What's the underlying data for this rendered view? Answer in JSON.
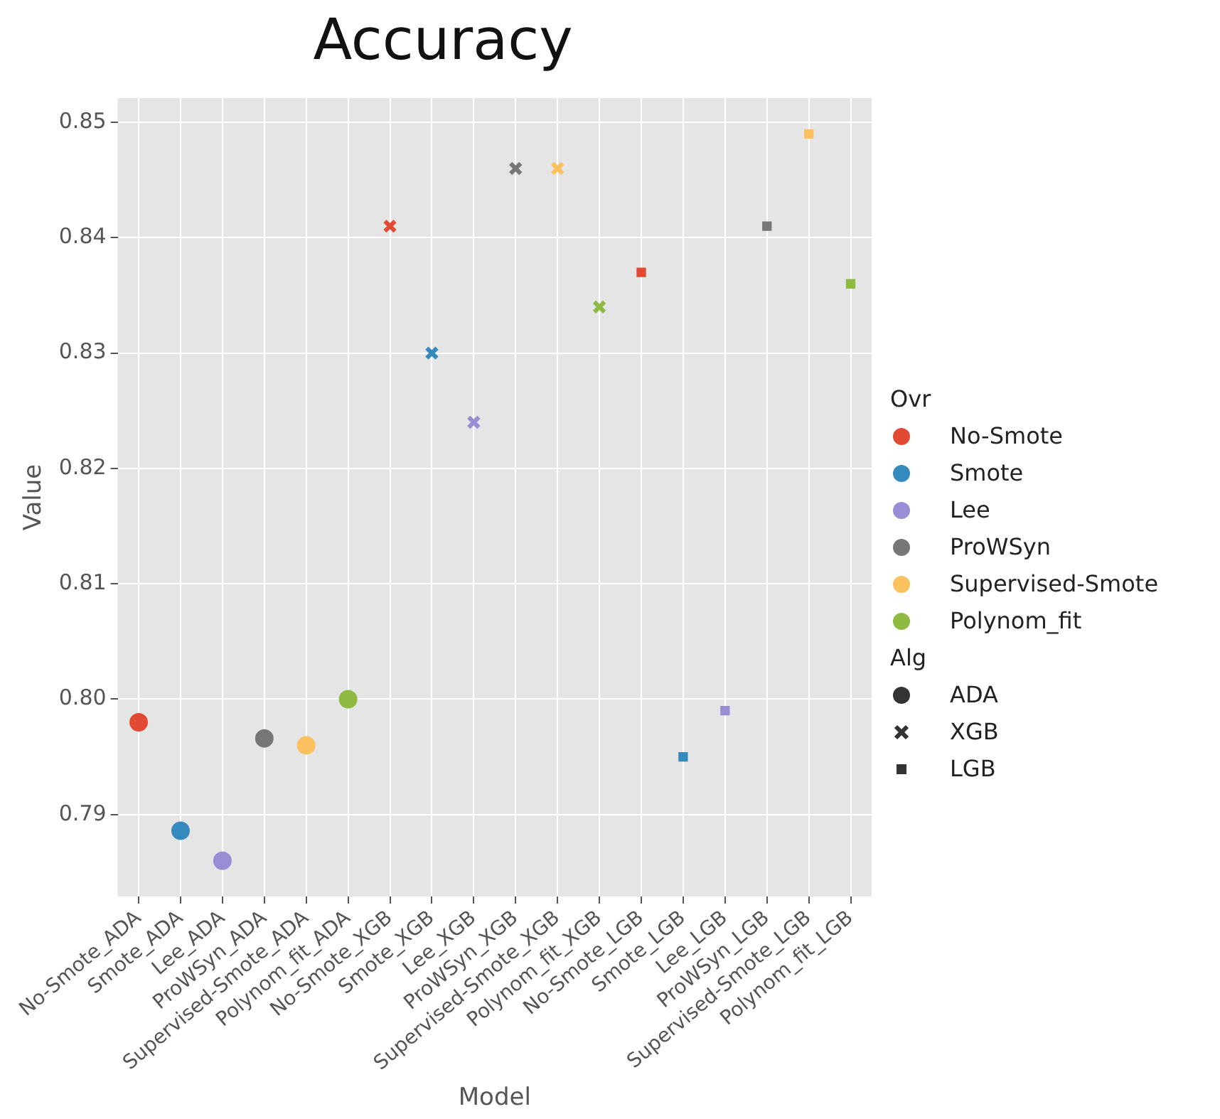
{
  "chart_data": {
    "type": "scatter",
    "title": "Accuracy",
    "xlabel": "Model",
    "ylabel": "Value",
    "legend_title": [
      "Ovr",
      "Alg"
    ],
    "legend": "right",
    "categories": [
      "No-Smote_ADA",
      "Smote_ADA",
      "Lee_ADA",
      "ProWSyn_ADA",
      "Supervised-Smote_ADA",
      "Polynom_fit_ADA",
      "No-Smote_XGB",
      "Smote_XGB",
      "Lee_XGB",
      "ProWSyn_XGB",
      "Supervised-Smote_XGB",
      "Polynom_fit_XGB",
      "No-Smote_LGB",
      "Smote_LGB",
      "Lee_LGB",
      "ProWSyn_LGB",
      "Supervised-Smote_LGB",
      "Polynom_fit_LGB"
    ],
    "ylim": [
      0.7829,
      0.8521
    ],
    "yticks": [
      0.79,
      {
        "value": 0.8,
        "label": "0.80"
      },
      0.81,
      0.82,
      0.83,
      0.84,
      0.85
    ],
    "grid": true,
    "series": [
      {
        "name": "No-Smote",
        "color": "#e24a33",
        "x": [
          "No-Smote_ADA",
          "No-Smote_XGB",
          "No-Smote_LGB"
        ],
        "values": [
          0.798,
          0.841,
          0.837
        ]
      },
      {
        "name": "Smote",
        "color": "#348abd",
        "x": [
          "Smote_ADA",
          "Smote_XGB",
          "Smote_LGB"
        ],
        "values": [
          0.7886,
          0.83,
          0.795
        ]
      },
      {
        "name": "Lee",
        "color": "#988ed5",
        "x": [
          "Lee_ADA",
          "Lee_XGB",
          "Lee_LGB"
        ],
        "values": [
          0.786,
          0.824,
          0.799
        ]
      },
      {
        "name": "ProWSyn",
        "color": "#777777",
        "x": [
          "ProWSyn_ADA",
          "ProWSyn_XGB",
          "ProWSyn_LGB"
        ],
        "values": [
          0.7966,
          0.846,
          0.841
        ]
      },
      {
        "name": "Supervised-Smote",
        "color": "#fbc15e",
        "x": [
          "Supervised-Smote_ADA",
          "Supervised-Smote_XGB",
          "Supervised-Smote_LGB"
        ],
        "values": [
          0.796,
          0.846,
          0.849
        ]
      },
      {
        "name": "Polynom_fit",
        "color": "#8eba42",
        "x": [
          "Polynom_fit_ADA",
          "Polynom_fit_XGB",
          "Polynom_fit_LGB"
        ],
        "values": [
          0.8,
          0.834,
          0.836
        ]
      },
      {
        "name": "ADA",
        "color": "#333333",
        "marker": "circle",
        "x": [
          "No-Smote_ADA",
          "Smote_ADA",
          "Lee_ADA",
          "ProWSyn_ADA",
          "Supervised-Smote_ADA",
          "Polynom_fit_ADA"
        ],
        "values": [
          null,
          null,
          null,
          null,
          null,
          null
        ]
      },
      {
        "name": "XGB",
        "color": "#333333",
        "marker": "cross",
        "x": [
          "No-Smote_XGB",
          "Smote_XGB",
          "Lee_XGB",
          "ProWSyn_XGB",
          "Supervised-Smote_XGB",
          "Polynom_fit_XGB"
        ],
        "values": [
          null,
          null,
          null,
          null,
          null,
          null
        ]
      },
      {
        "name": "LGB",
        "color": "#333333",
        "marker": "square",
        "x": [
          "No-Smote_LGB",
          "Smote_LGB",
          "Lee_LGB",
          "ProWSyn_LGB",
          "Supervised-Smote_LGB",
          "Polynom_fit_LGB"
        ],
        "values": [
          null,
          null,
          null,
          null,
          null,
          null
        ]
      }
    ]
  }
}
